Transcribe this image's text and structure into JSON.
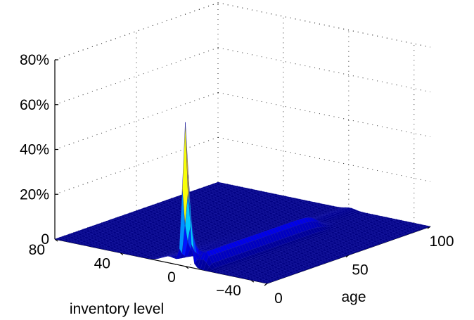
{
  "chart_data": {
    "type": "surface",
    "xlabel": "age",
    "ylabel": "inventory level",
    "zlabel": "",
    "xlim": [
      0,
      100
    ],
    "ylim": [
      -50,
      80
    ],
    "zlim": [
      0,
      0.8
    ],
    "x_ticks": [
      {
        "value": 0,
        "label": "0"
      },
      {
        "value": 50,
        "label": "50"
      },
      {
        "value": 100,
        "label": "100"
      }
    ],
    "y_ticks": [
      {
        "value": 80,
        "label": "80"
      },
      {
        "value": 40,
        "label": "40"
      },
      {
        "value": 0,
        "label": "0"
      },
      {
        "value": -40,
        "label": "−40"
      }
    ],
    "z_ticks": [
      {
        "value": 0,
        "label": "0"
      },
      {
        "value": 0.2,
        "label": "20%"
      },
      {
        "value": 0.4,
        "label": "40%"
      },
      {
        "value": 0.6,
        "label": "60%"
      },
      {
        "value": 0.8,
        "label": "80%"
      }
    ],
    "grid": true,
    "colormap": "jet",
    "peak": {
      "age": 0,
      "inventory_level": 0,
      "value": 0.6
    },
    "surface_features": [
      {
        "description": "sharp peak at age 0, inventory level 0",
        "age": 0,
        "inventory_level": 0,
        "value": 0.6
      },
      {
        "description": "narrow ridge along inventory level about -8 across ages",
        "inventory_level": -8,
        "value": 0.08
      },
      {
        "description": "ridge along inventory level about 0 decaying with age",
        "inventory_level": 0,
        "value": 0.05
      }
    ]
  }
}
